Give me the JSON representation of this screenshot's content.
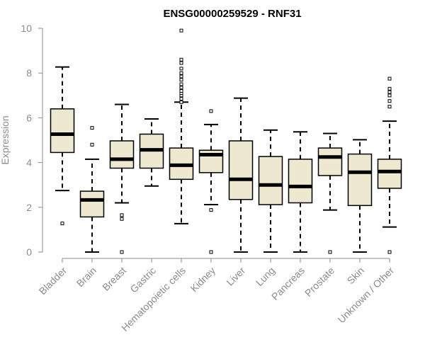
{
  "chart_data": {
    "type": "boxplot",
    "title": "ENSG00000259529 - RNF31",
    "xlabel": "",
    "ylabel": "Expression",
    "ylim": [
      0,
      10
    ],
    "yticks": [
      0,
      2,
      4,
      6,
      8,
      10
    ],
    "box_fill": "#efe8d0",
    "categories": [
      "Bladder",
      "Brain",
      "Breast",
      "Gastric",
      "Hematopoietic cells",
      "Kidney",
      "Liver",
      "Lung",
      "Pancreas",
      "Prostate",
      "Skin",
      "Unknown / Other"
    ],
    "boxes": [
      {
        "name": "Bladder",
        "whisker_low": 2.75,
        "q1": 4.45,
        "median": 5.27,
        "q3": 6.4,
        "whisker_high": 8.27,
        "outliers": [
          1.28
        ]
      },
      {
        "name": "Brain",
        "whisker_low": 0.0,
        "q1": 1.57,
        "median": 2.33,
        "q3": 2.72,
        "whisker_high": 4.15,
        "outliers": [
          4.8,
          5.55
        ]
      },
      {
        "name": "Breast",
        "whisker_low": 2.2,
        "q1": 3.75,
        "median": 4.15,
        "q3": 4.97,
        "whisker_high": 6.6,
        "outliers": [
          1.48,
          1.65,
          0.0
        ]
      },
      {
        "name": "Gastric",
        "whisker_low": 2.95,
        "q1": 3.75,
        "median": 4.57,
        "q3": 5.27,
        "whisker_high": 5.95,
        "outliers": []
      },
      {
        "name": "Hematopoietic cells",
        "whisker_low": 1.27,
        "q1": 3.25,
        "median": 3.88,
        "q3": 4.65,
        "whisker_high": 6.7,
        "outliers": [
          6.7,
          6.85,
          7.0,
          7.1,
          7.2,
          7.35,
          7.5,
          7.7,
          7.85,
          8.0,
          8.2,
          8.45,
          8.6,
          9.9
        ]
      },
      {
        "name": "Kidney",
        "whisker_low": 2.12,
        "q1": 3.55,
        "median": 4.35,
        "q3": 4.55,
        "whisker_high": 5.7,
        "outliers": [
          6.3,
          1.88,
          0.0
        ]
      },
      {
        "name": "Liver",
        "whisker_low": 0.0,
        "q1": 2.35,
        "median": 3.25,
        "q3": 4.97,
        "whisker_high": 6.88,
        "outliers": []
      },
      {
        "name": "Lung",
        "whisker_low": 0.0,
        "q1": 2.12,
        "median": 3.0,
        "q3": 4.27,
        "whisker_high": 5.45,
        "outliers": []
      },
      {
        "name": "Pancreas",
        "whisker_low": 0.0,
        "q1": 2.2,
        "median": 2.93,
        "q3": 4.15,
        "whisker_high": 5.37,
        "outliers": []
      },
      {
        "name": "Prostate",
        "whisker_low": 1.88,
        "q1": 3.42,
        "median": 4.25,
        "q3": 4.65,
        "whisker_high": 5.3,
        "outliers": [
          0.0
        ]
      },
      {
        "name": "Skin",
        "whisker_low": 0.0,
        "q1": 2.08,
        "median": 3.57,
        "q3": 4.38,
        "whisker_high": 5.02,
        "outliers": []
      },
      {
        "name": "Unknown / Other",
        "whisker_low": 1.12,
        "q1": 2.85,
        "median": 3.6,
        "q3": 4.15,
        "whisker_high": 5.85,
        "outliers": [
          6.5,
          6.75,
          7.0,
          7.15,
          7.3,
          7.75,
          0.0
        ]
      }
    ]
  }
}
